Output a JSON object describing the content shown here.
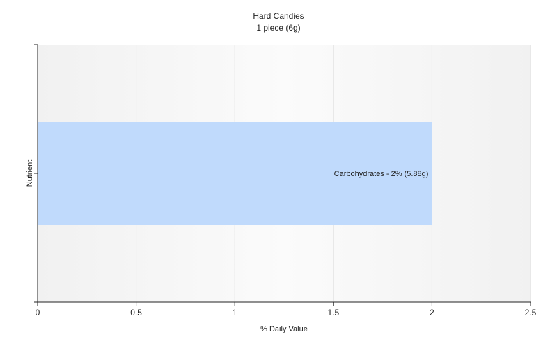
{
  "chart_data": {
    "type": "bar",
    "orientation": "horizontal",
    "title": "Hard Candies",
    "subtitle": "1 piece (6g)",
    "xlabel": "% Daily Value",
    "ylabel": "Nutrient",
    "xlim": [
      0,
      2.5
    ],
    "x_ticks": [
      "0",
      "0.5",
      "1",
      "1.5",
      "2",
      "2.5"
    ],
    "x_tick_values": [
      0,
      0.5,
      1,
      1.5,
      2,
      2.5
    ],
    "grid": true,
    "legend": "none",
    "categories": [
      "Carbohydrates"
    ],
    "values": [
      2
    ],
    "data_labels": [
      "Carbohydrates - 2% (5.88g)"
    ],
    "bar_color": "#c0dafc",
    "plot_background": "#f7f7f7",
    "grid_color": "#e0e0e0",
    "axis_color": "#222222"
  }
}
